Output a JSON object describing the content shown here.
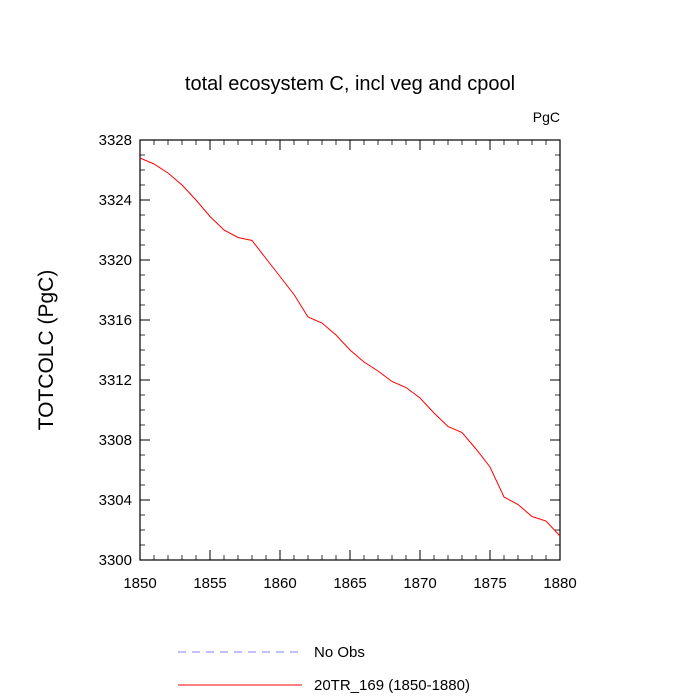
{
  "chart_data": {
    "type": "line",
    "title": "total ecosystem C, incl veg and cpool",
    "units_label": "PgC",
    "ylabel": "TOTCOLC  (PgC)",
    "xlabel": "",
    "xlim": [
      1850,
      1880
    ],
    "ylim": [
      3300,
      3328
    ],
    "x_ticks": [
      1850,
      1855,
      1860,
      1865,
      1870,
      1875,
      1880
    ],
    "y_ticks": [
      3300,
      3304,
      3308,
      3312,
      3316,
      3320,
      3324,
      3328
    ],
    "x_tick_labels": [
      "1850",
      "1855",
      "1860",
      "1865",
      "1870",
      "1875",
      "1880"
    ],
    "y_tick_labels": [
      "3300",
      "3304",
      "3308",
      "3312",
      "3316",
      "3320",
      "3324",
      "3328"
    ],
    "legend_placement": "bottom",
    "grid": false,
    "series": [
      {
        "name": "No Obs",
        "color": "#8080ff",
        "style": "dashed",
        "x": [],
        "values": []
      },
      {
        "name": "20TR_169 (1850-1880)",
        "color": "#ff0000",
        "style": "solid",
        "x": [
          1850,
          1851,
          1852,
          1853,
          1854,
          1855,
          1856,
          1857,
          1858,
          1859,
          1860,
          1861,
          1862,
          1863,
          1864,
          1865,
          1866,
          1867,
          1868,
          1869,
          1870,
          1871,
          1872,
          1873,
          1874,
          1875,
          1876,
          1877,
          1878,
          1879,
          1880
        ],
        "values": [
          3326.8,
          3326.4,
          3325.8,
          3325.0,
          3324.0,
          3322.9,
          3322.0,
          3321.5,
          3321.3,
          3320.1,
          3318.9,
          3317.7,
          3316.2,
          3315.8,
          3315.0,
          3314.0,
          3313.2,
          3312.6,
          3311.9,
          3311.5,
          3310.8,
          3309.8,
          3308.9,
          3308.5,
          3307.4,
          3306.2,
          3304.2,
          3303.7,
          3302.9,
          3302.6,
          3301.6
        ]
      }
    ]
  }
}
